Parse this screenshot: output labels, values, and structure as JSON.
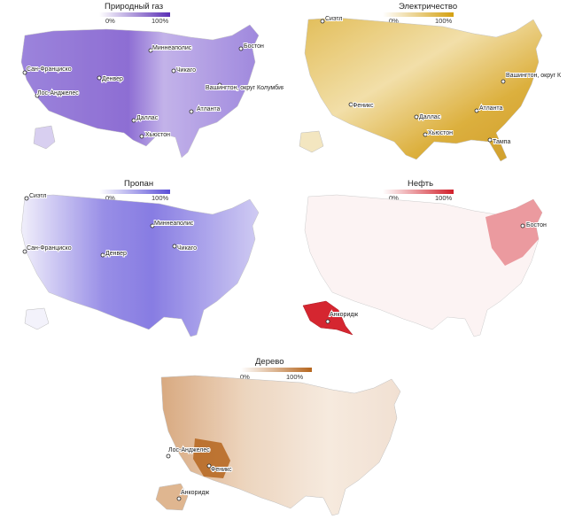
{
  "panels": [
    {
      "id": "gas",
      "title": "Природный газ",
      "legend_min": "0%",
      "legend_max": "100%",
      "color": "#5b2fb6",
      "cities": [
        "Миннеаполис",
        "Бостон",
        "Сан-Франциско",
        "Денвер",
        "Чикаго",
        "Вашингтон, округ Колумбия.",
        "Лос-Анджелес",
        "Атланта",
        "Даллас",
        "Хьюстон"
      ]
    },
    {
      "id": "electric",
      "title": "Электричество",
      "legend_min": "0%",
      "legend_max": "100%",
      "color": "#d4a010",
      "cities": [
        "Сиэтл",
        "Вашингтон, округ К",
        "Феникс",
        "Даллас",
        "Атланта",
        "Хьюстон",
        "Тампа"
      ]
    },
    {
      "id": "propane",
      "title": "Пропан",
      "legend_min": "0%",
      "legend_max": "100%",
      "color": "#5a4fd8",
      "cities": [
        "Сиэтл",
        "Миннеаполис",
        "Сан-Франциско",
        "Чикаго",
        "Денвер"
      ]
    },
    {
      "id": "oil",
      "title": "Нефть",
      "legend_min": "0%",
      "legend_max": "100%",
      "color": "#d11f2a",
      "cities": [
        "Бостон",
        "Анкоридж"
      ]
    },
    {
      "id": "wood",
      "title": "Дерево",
      "legend_min": "0%",
      "legend_max": "100%",
      "color": "#b5651d",
      "cities": [
        "Лос-Анджелес",
        "Феникс",
        "Анкоридж"
      ]
    }
  ]
}
